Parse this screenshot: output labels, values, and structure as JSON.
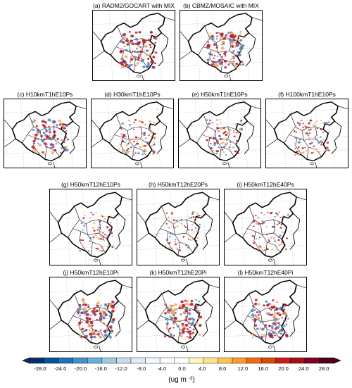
{
  "panels": [
    {
      "id": "a",
      "title": "(a) RADM2/GOCART with MIX",
      "intensity": 0.9
    },
    {
      "id": "b",
      "title": "(b) CBMZ/MOSAIC with MIX",
      "intensity": 0.9
    },
    {
      "id": "c",
      "title": "(c) H10kmT1hE10Ps",
      "intensity": 0.8
    },
    {
      "id": "d",
      "title": "(d) H30kmT1hE10Ps",
      "intensity": 0.55
    },
    {
      "id": "e",
      "title": "(e) H50kmT1hE10Ps",
      "intensity": 0.5
    },
    {
      "id": "f",
      "title": "(f) H100kmT1hE10Ps",
      "intensity": 0.45
    },
    {
      "id": "g",
      "title": "(g) H50kmT12hE10Ps",
      "intensity": 0.3
    },
    {
      "id": "h",
      "title": "(h) H50kmT12hE20Ps",
      "intensity": 0.3
    },
    {
      "id": "i",
      "title": "(i) H50kmT12hE40Ps",
      "intensity": 0.3
    },
    {
      "id": "j",
      "title": "(j) H50kmT12hE10Pi",
      "intensity": 0.9
    },
    {
      "id": "k",
      "title": "(k) H50kmT12hE20Pi",
      "intensity": 0.9
    },
    {
      "id": "l",
      "title": "(l) H50kmT12hE40Pi",
      "intensity": 0.85
    }
  ],
  "colorbar": {
    "tick_labels": [
      "-28.0",
      "-24.0",
      "-20.0",
      "-16.0",
      "-12.0",
      "-8.0",
      "-4.0",
      "0.0",
      "4.0",
      "8.0",
      "12.0",
      "16.0",
      "20.0",
      "24.0",
      "28.0"
    ],
    "unit_base": "(ug m",
    "unit_exp": "-3",
    "unit_close": ")",
    "colors": [
      "#08306b",
      "#08519c",
      "#2171b5",
      "#4292c6",
      "#6baed6",
      "#9ecae1",
      "#c6dbef",
      "#deebf7",
      "#f2f8fc",
      "#ffffff",
      "#ffffff",
      "#fff7bc",
      "#fee391",
      "#fec44f",
      "#fe9929",
      "#f16913",
      "#d94801",
      "#cb181d",
      "#a50f15",
      "#800026",
      "#4d0014"
    ]
  },
  "colors": {
    "negative": "#4a7fc0",
    "positive_light": "#f5a25b",
    "positive_dark": "#b2182b",
    "border": "#000000",
    "grid": "#b5b5b5"
  }
}
